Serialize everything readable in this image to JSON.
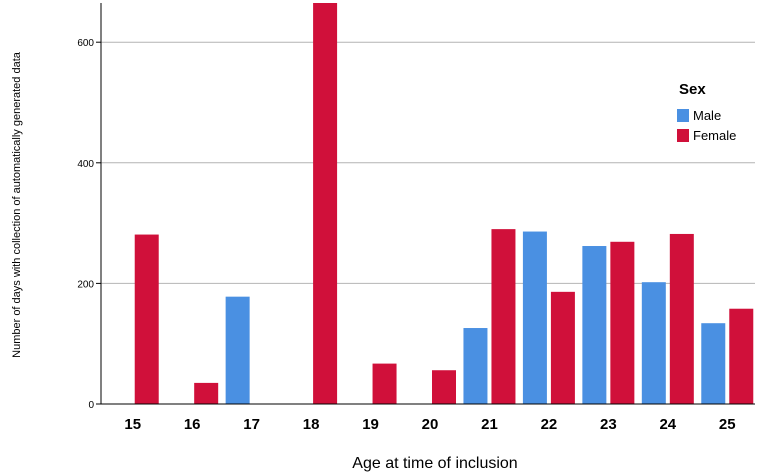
{
  "chart_data": {
    "type": "bar",
    "title": "",
    "xlabel": "Age at time of inclusion",
    "ylabel": "Number of days with collection of automatically generated data",
    "ylim": [
      0,
      665
    ],
    "yticks": [
      0,
      200,
      400,
      600
    ],
    "grid": true,
    "legend_title": "Sex",
    "legend_position": "right",
    "categories": [
      "15",
      "16",
      "17",
      "18",
      "19",
      "20",
      "21",
      "22",
      "23",
      "24",
      "25"
    ],
    "series": [
      {
        "name": "Male",
        "color": "#4a90e2",
        "values": [
          null,
          null,
          178,
          null,
          null,
          null,
          126,
          286,
          262,
          202,
          134
        ]
      },
      {
        "name": "Female",
        "color": "#d0103a",
        "values": [
          281,
          35,
          null,
          665,
          67,
          56,
          290,
          186,
          269,
          282,
          158
        ]
      }
    ]
  }
}
